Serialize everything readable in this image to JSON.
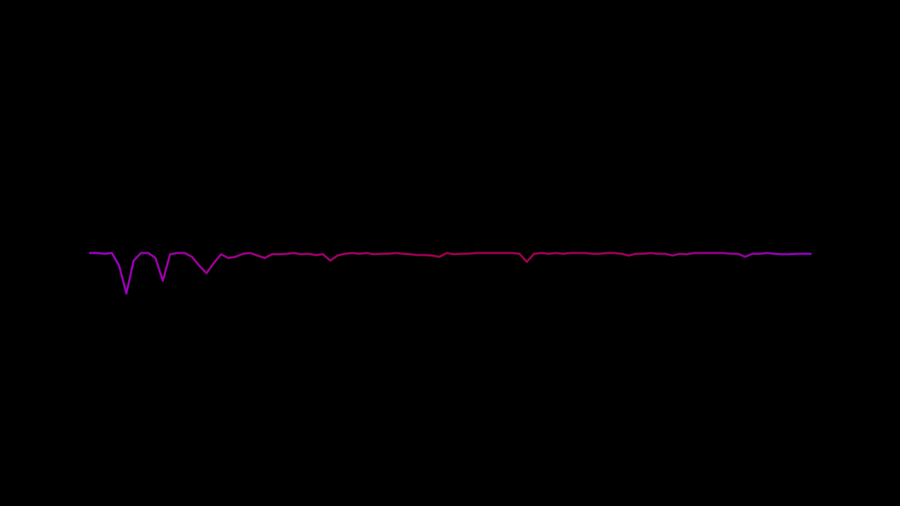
{
  "chart_data": {
    "type": "line",
    "colors": [
      "#9a00c8",
      "#a0007a",
      "#a0004a",
      "#a0005e",
      "#9200cc"
    ],
    "ylim": [
      -1,
      1
    ],
    "values": [
      0,
      0,
      -0.003,
      0,
      -0.05,
      -0.16,
      -0.03,
      0,
      0,
      -0.02,
      -0.11,
      -0.005,
      0,
      0,
      -0.015,
      -0.05,
      -0.08,
      -0.04,
      -0.005,
      -0.02,
      -0.015,
      -0.003,
      0,
      -0.01,
      -0.02,
      -0.005,
      -0.005,
      -0.003,
      0,
      -0.005,
      -0.003,
      -0.008,
      -0.005,
      -0.03,
      -0.01,
      -0.003,
      0,
      -0.003,
      0,
      -0.005,
      -0.003,
      -0.003,
      0,
      -0.003,
      -0.005,
      -0.008,
      -0.008,
      -0.01,
      -0.015,
      0,
      -0.005,
      -0.003,
      -0.003,
      0,
      0,
      0,
      0,
      0,
      0,
      -0.003,
      -0.035,
      -0.003,
      0,
      -0.003,
      0,
      -0.003,
      0,
      0,
      0,
      -0.003,
      -0.003,
      0,
      0,
      -0.003,
      -0.01,
      -0.003,
      -0.003,
      0,
      -0.003,
      -0.003,
      -0.01,
      -0.003,
      -0.005,
      0,
      0,
      0,
      0,
      0,
      -0.003,
      -0.003,
      -0.015,
      -0.003,
      -0.003,
      0,
      -0.003,
      -0.005,
      -0.005,
      -0.003,
      -0.003,
      -0.003
    ]
  }
}
